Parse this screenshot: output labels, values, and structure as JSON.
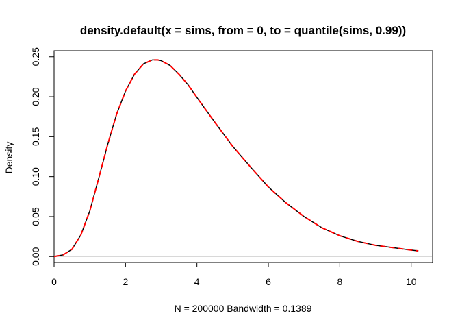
{
  "chart_data": {
    "type": "line",
    "title": "density.default(x = sims, from = 0, to = quantile(sims, 0.99))",
    "xlabel": "N = 200000   Bandwidth = 0.1389",
    "ylabel": "Density",
    "xlim": [
      0,
      10.6
    ],
    "ylim": [
      -0.0075,
      0.2575
    ],
    "xticks": [
      0,
      2,
      4,
      6,
      8,
      10
    ],
    "yticks": [
      0.0,
      0.05,
      0.1,
      0.15,
      0.2,
      0.25
    ],
    "xtick_labels": [
      "0",
      "2",
      "4",
      "6",
      "8",
      "10"
    ],
    "ytick_labels": [
      "0.00",
      "0.05",
      "0.10",
      "0.15",
      "0.20",
      "0.25"
    ],
    "baseline": 0,
    "grid": false,
    "series": [
      {
        "color": "#000000",
        "style": "solid",
        "x": [
          0,
          0.25,
          0.5,
          0.75,
          1.0,
          1.25,
          1.5,
          1.75,
          2.0,
          2.25,
          2.5,
          2.75,
          2.9,
          3.0,
          3.25,
          3.5,
          3.75,
          4.0,
          4.5,
          5.0,
          5.5,
          6.0,
          6.5,
          7.0,
          7.5,
          8.0,
          8.5,
          9.0,
          9.5,
          10.0,
          10.2
        ],
        "y": [
          0.0,
          0.002,
          0.009,
          0.027,
          0.057,
          0.098,
          0.14,
          0.178,
          0.207,
          0.228,
          0.241,
          0.246,
          0.246,
          0.245,
          0.239,
          0.228,
          0.215,
          0.199,
          0.168,
          0.138,
          0.112,
          0.087,
          0.067,
          0.05,
          0.036,
          0.026,
          0.019,
          0.014,
          0.011,
          0.008,
          0.007
        ]
      },
      {
        "color": "#ff0000",
        "style": "dashed",
        "x": [
          0,
          0.25,
          0.5,
          0.75,
          1.0,
          1.25,
          1.5,
          1.75,
          2.0,
          2.25,
          2.5,
          2.75,
          2.9,
          3.0,
          3.25,
          3.5,
          3.75,
          4.0,
          4.5,
          5.0,
          5.5,
          6.0,
          6.5,
          7.0,
          7.5,
          8.0,
          8.5,
          9.0,
          9.5,
          10.0,
          10.2
        ],
        "y": [
          0.0,
          0.002,
          0.009,
          0.027,
          0.057,
          0.098,
          0.14,
          0.178,
          0.207,
          0.228,
          0.241,
          0.246,
          0.246,
          0.245,
          0.239,
          0.228,
          0.215,
          0.199,
          0.168,
          0.138,
          0.112,
          0.087,
          0.067,
          0.05,
          0.036,
          0.026,
          0.019,
          0.014,
          0.011,
          0.008,
          0.007
        ]
      }
    ]
  }
}
